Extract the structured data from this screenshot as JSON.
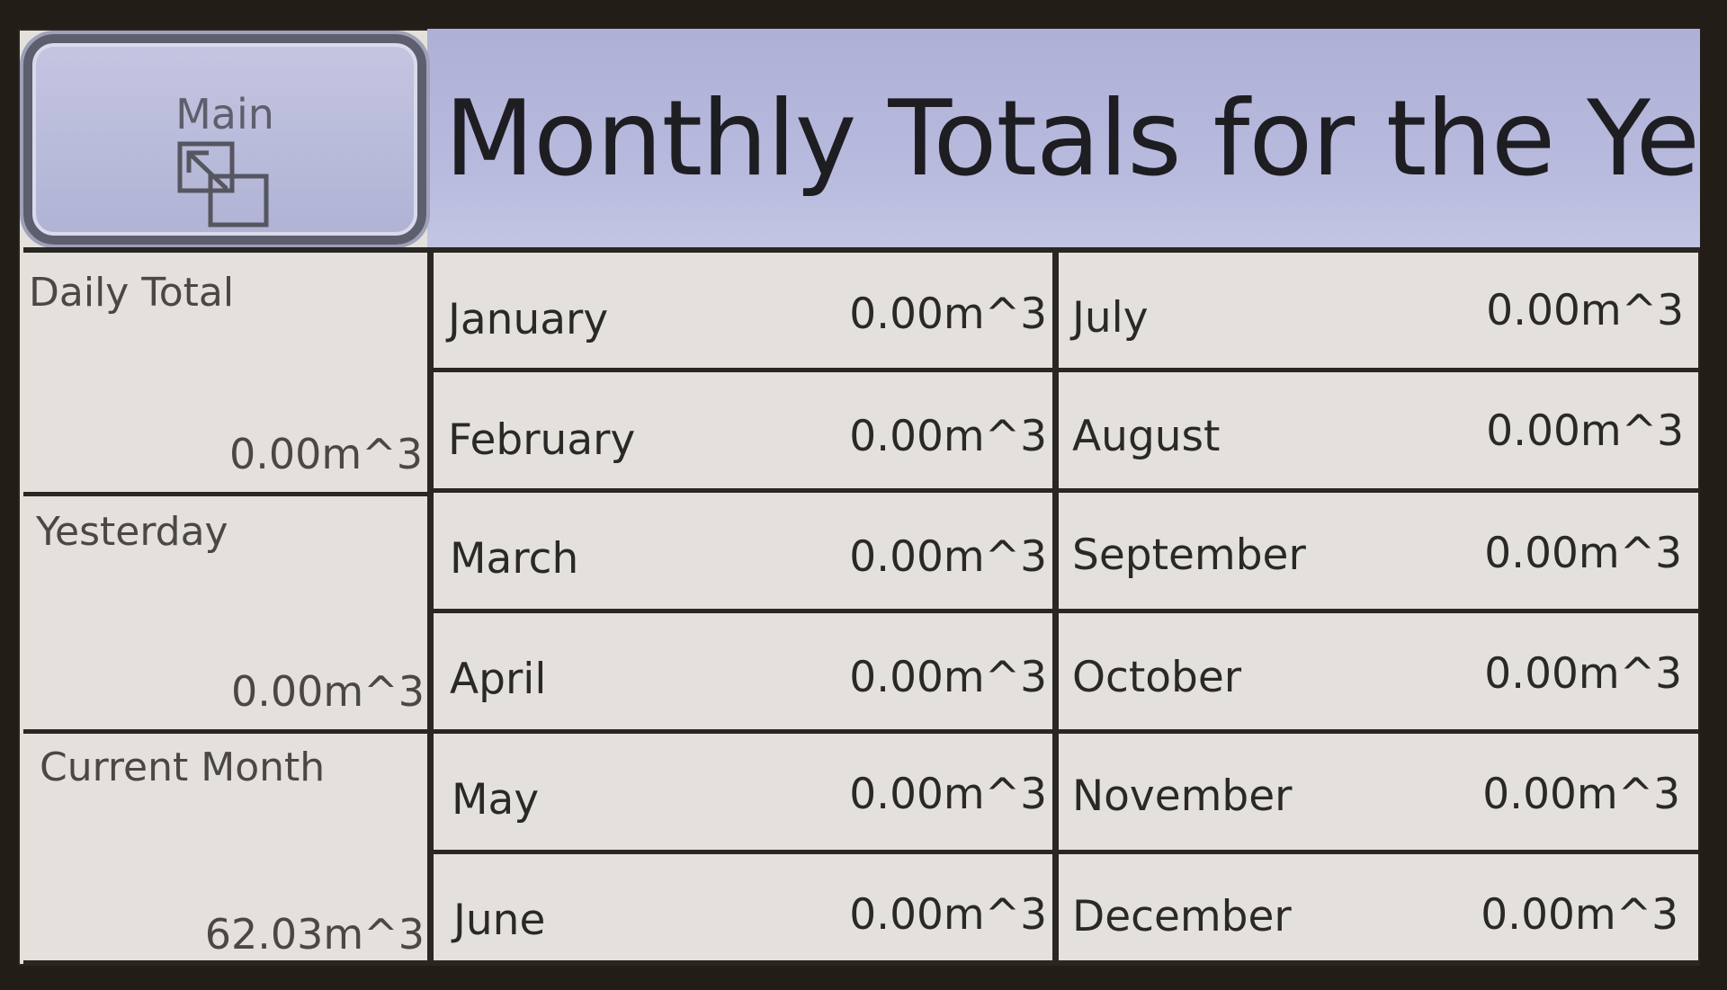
{
  "header": {
    "title": "Monthly Totals for the Year",
    "main_button_label": "Main",
    "main_button_icon": "window-icon"
  },
  "summary": [
    {
      "label": "Daily Total",
      "value": "0.00m^3"
    },
    {
      "label": "Yesterday",
      "value": "0.00m^3"
    },
    {
      "label": "Current Month",
      "value": "62.03m^3"
    }
  ],
  "months_left": [
    {
      "label": "January",
      "value": "0.00m^3"
    },
    {
      "label": "February",
      "value": "0.00m^3"
    },
    {
      "label": "March",
      "value": "0.00m^3"
    },
    {
      "label": "April",
      "value": "0.00m^3"
    },
    {
      "label": "May",
      "value": "0.00m^3"
    },
    {
      "label": "June",
      "value": "0.00m^3"
    }
  ],
  "months_right": [
    {
      "label": "July",
      "value": "0.00m^3"
    },
    {
      "label": "August",
      "value": "0.00m^3"
    },
    {
      "label": "September",
      "value": "0.00m^3"
    },
    {
      "label": "October",
      "value": "0.00m^3"
    },
    {
      "label": "November",
      "value": "0.00m^3"
    },
    {
      "label": "December",
      "value": "0.00m^3"
    }
  ],
  "colors": {
    "header_background": "#b7b9dd",
    "cell_background": "#e4e1dc",
    "grid_lines": "#2a2622"
  }
}
